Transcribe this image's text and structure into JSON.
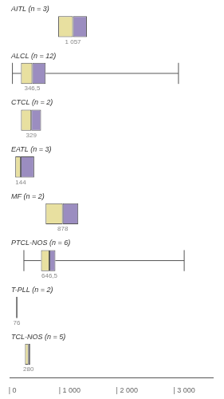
{
  "chart_data": {
    "type": "boxplot",
    "orientation": "horizontal",
    "categories": [
      "AITL (n = 3)",
      "ALCL (n = 12)",
      "CTCL (n = 2)",
      "EATL (n = 3)",
      "MF (n = 2)",
      "PTCL-NOS (n = 6)",
      "T-PLL (n = 2)",
      "TCL-NOS (n = 5)"
    ],
    "values": [
      1057,
      346.5,
      329,
      144,
      878,
      646.5,
      76,
      280
    ],
    "value_labels": [
      "1 057",
      "346,5",
      "329",
      "144",
      "878",
      "646,5",
      "76",
      "280"
    ],
    "q1": [
      800,
      150,
      150,
      50,
      580,
      500,
      76,
      220
    ],
    "q3": [
      1300,
      580,
      500,
      380,
      1150,
      750,
      76,
      310
    ],
    "whisker_low": [
      null,
      0,
      null,
      null,
      null,
      200,
      null,
      null
    ],
    "whisker_high": [
      null,
      2900,
      null,
      null,
      null,
      3000,
      null,
      null
    ],
    "xlim": [
      -50,
      3500
    ],
    "xticks": [
      {
        "value": 0,
        "label": "| 0"
      },
      {
        "value": 1000,
        "label": "| 1 000"
      },
      {
        "value": 2000,
        "label": "| 2 000"
      },
      {
        "value": 3000,
        "label": "| 3 000"
      }
    ],
    "colors": [
      "#e8e0a0",
      "#9b8dc0"
    ],
    "color": "#555555",
    "data_labels": true,
    "grid": false,
    "tick_labels": "x"
  }
}
